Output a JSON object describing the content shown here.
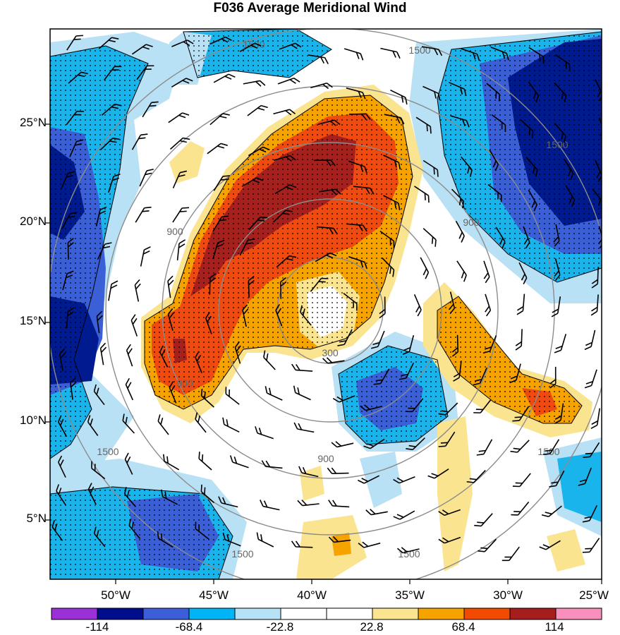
{
  "title": "F036 Average Meridional Wind",
  "axes": {
    "lat_labels": [
      "25°N",
      "20°N",
      "15°N",
      "10°N",
      "5°N"
    ],
    "lon_labels": [
      "50°W",
      "45°W",
      "40°W",
      "35°W",
      "30°W",
      "25°W"
    ]
  },
  "range_rings": {
    "labels": [
      "300",
      "900",
      "1500"
    ],
    "instances": [
      "1500",
      "1500",
      "1500",
      "900",
      "900",
      "900",
      "300",
      "900",
      "1500",
      "1500",
      "1500",
      "1500"
    ]
  },
  "colorbar": {
    "labels": [
      "-114",
      "-68.4",
      "-22.8",
      "22.8",
      "68.4",
      "114"
    ],
    "colors": [
      "#9b30d9",
      "#000e8c",
      "#3c5ed8",
      "#00b5f5",
      "#b6e2f8",
      "#ffffff",
      "#ffffff",
      "#fbe48f",
      "#f6a300",
      "#f04b00",
      "#a51d1d",
      "#f88fbd"
    ]
  },
  "field_colors": {
    "deep_blue": "#001a8f",
    "mid_blue": "#3a5fd6",
    "cyan": "#1ab4ec",
    "light_blue": "#b9e1f5",
    "yellow": "#fbe48f",
    "orange": "#f6a300",
    "red_orange": "#ef4a10",
    "dark_red": "#a6201e",
    "ring_gray": "#8c8c8c"
  }
}
